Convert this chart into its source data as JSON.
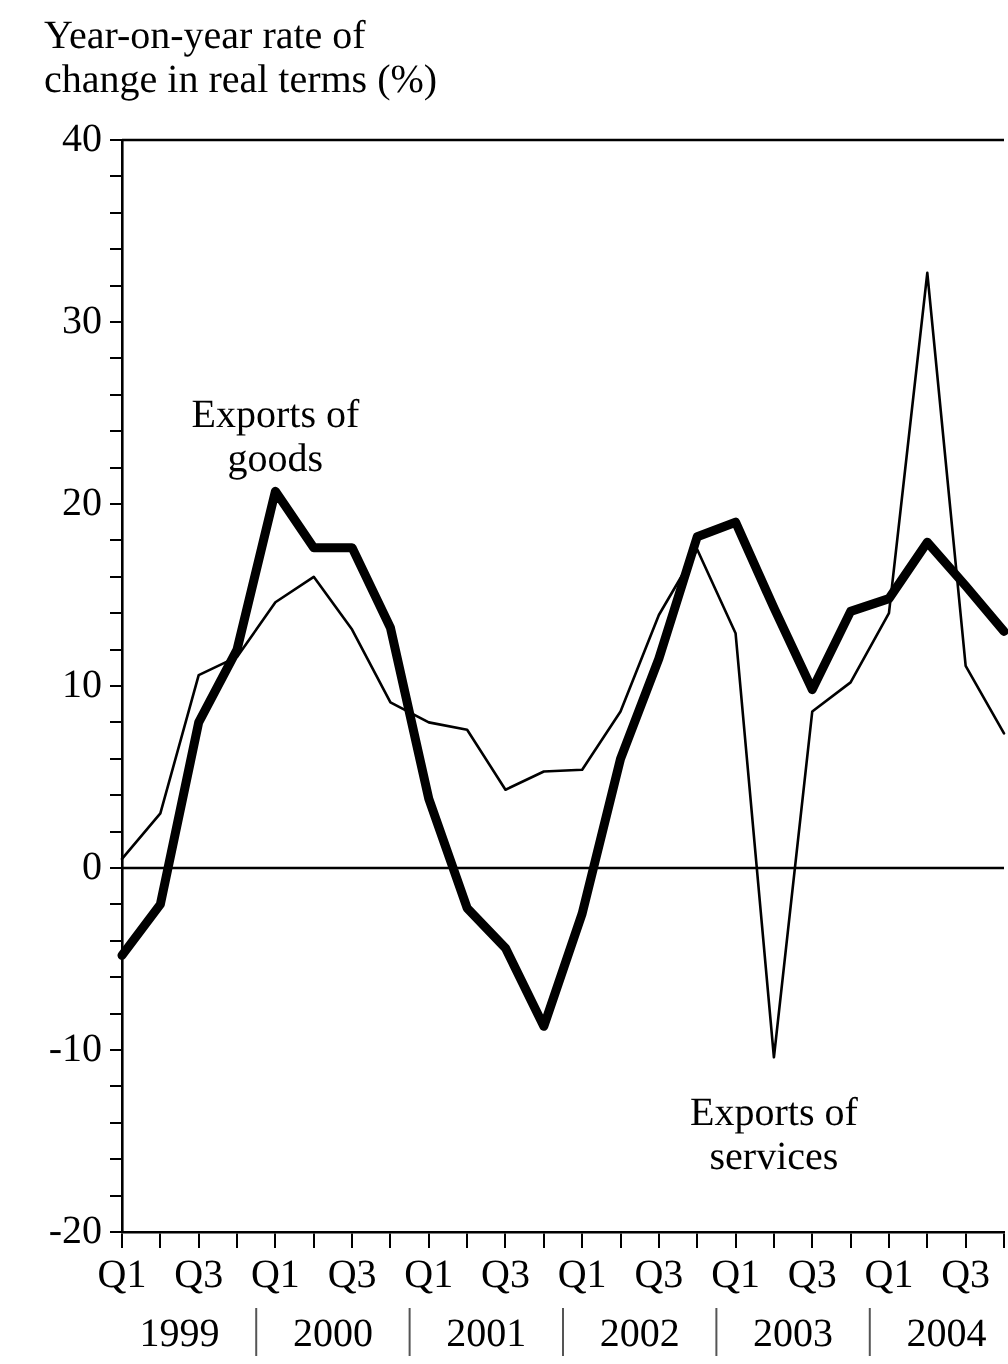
{
  "chart_data": {
    "type": "line",
    "ylabel": "Year-on-year rate of\nchange in real terms (%)",
    "categories": [
      "Q1",
      null,
      "Q3",
      null,
      "Q1",
      null,
      "Q3",
      null,
      "Q1",
      null,
      "Q3",
      null,
      "Q1",
      null,
      "Q3",
      null,
      "Q1",
      null,
      "Q3",
      null,
      "Q1",
      null,
      "Q3",
      null
    ],
    "annotations": [
      "1999",
      "2000",
      "2001",
      "2002",
      "2003",
      "2004"
    ],
    "series": [
      {
        "name": "Exports of goods",
        "color": "#000000",
        "values": [
          -4.8,
          -2,
          8,
          12,
          20.7,
          17.6,
          17.6,
          13.2,
          3.8,
          -2.2,
          -4.4,
          -8.7,
          -2.5,
          6,
          11.5,
          18.2,
          19,
          14.3,
          9.8,
          14.1,
          14.8,
          17.9,
          15.5,
          13
        ]
      },
      {
        "name": "Exports of services",
        "color": "#000000",
        "values": [
          0.5,
          3,
          10.6,
          11.6,
          14.6,
          16,
          13.1,
          9.1,
          8,
          7.6,
          4.3,
          5.3,
          5.4,
          8.6,
          13.9,
          17.5,
          12.9,
          -10.4,
          8.6,
          10.2,
          14,
          32.7,
          11.1,
          7.4
        ]
      }
    ],
    "ylim": [
      -20,
      40
    ],
    "yticks": [
      -20,
      {
        "value": -18,
        "label": null
      },
      {
        "value": -16,
        "label": null
      },
      {
        "value": -14,
        "label": null
      },
      {
        "value": -12,
        "label": null
      },
      -10,
      {
        "value": -8,
        "label": null
      },
      {
        "value": -6,
        "label": null
      },
      {
        "value": -4,
        "label": null
      },
      {
        "value": -2,
        "label": null
      },
      0,
      {
        "value": 2,
        "label": null
      },
      {
        "value": 4,
        "label": null
      },
      {
        "value": 6,
        "label": null
      },
      {
        "value": 8,
        "label": null
      },
      10,
      {
        "value": 12,
        "label": null
      },
      {
        "value": 14,
        "label": null
      },
      {
        "value": 16,
        "label": null
      },
      {
        "value": 18,
        "label": null
      },
      20,
      {
        "value": 22,
        "label": null
      },
      {
        "value": 24,
        "label": null
      },
      {
        "value": 26,
        "label": null
      },
      {
        "value": 28,
        "label": null
      },
      30,
      {
        "value": 32,
        "label": null
      },
      {
        "value": 34,
        "label": null
      },
      {
        "value": 36,
        "label": null
      },
      {
        "value": 38,
        "label": null
      },
      40
    ],
    "ref_lines": [
      {
        "axis": "y",
        "value": 0
      }
    ],
    "grid": false,
    "legend": false,
    "marker": "none",
    "line_style": "solid"
  }
}
